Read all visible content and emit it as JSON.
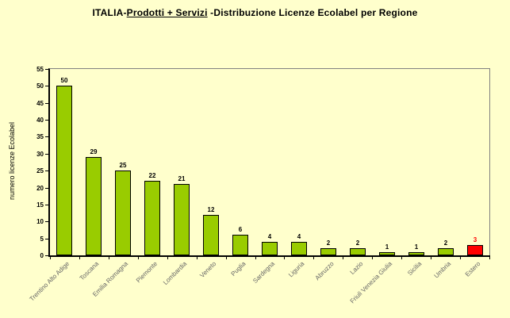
{
  "colors": {
    "background": "#FFFFCC",
    "plot_border": "#808080",
    "axis": "#000000",
    "category_label": "#666666"
  },
  "chart_data": {
    "type": "bar",
    "title": "ITALIA-Prodotti + Servizi -Distribuzione Licenze Ecolabel per Regione",
    "title_parts": {
      "prefix": "ITALIA-",
      "underlined": "Prodotti + Servizi",
      "suffix": " -Distribuzione Licenze Ecolabel per Regione"
    },
    "xlabel": "",
    "ylabel": "numero licenze Ecolabel",
    "ylim": [
      0,
      55
    ],
    "ytick_step": 5,
    "grid": false,
    "legend": false,
    "categories": [
      "Trentino Alto Adige",
      "Toscana",
      "Emilia Romagna",
      "Piemonte",
      "Lombardia",
      "Veneto",
      "Puglia",
      "Sardegna",
      "Liguria",
      "Abruzzo",
      "Lazio",
      "Friuli Venezia Giulia",
      "Sicilia",
      "Umbria",
      "Estero"
    ],
    "values": [
      50,
      29,
      25,
      22,
      21,
      12,
      6,
      4,
      4,
      2,
      2,
      1,
      1,
      2,
      3
    ],
    "highlight_index": 14,
    "bar_colors": {
      "default": "#99CC00",
      "highlight": "#FF0000"
    },
    "value_label_colors": {
      "default": "#000000",
      "highlight": "#FF0000"
    }
  }
}
